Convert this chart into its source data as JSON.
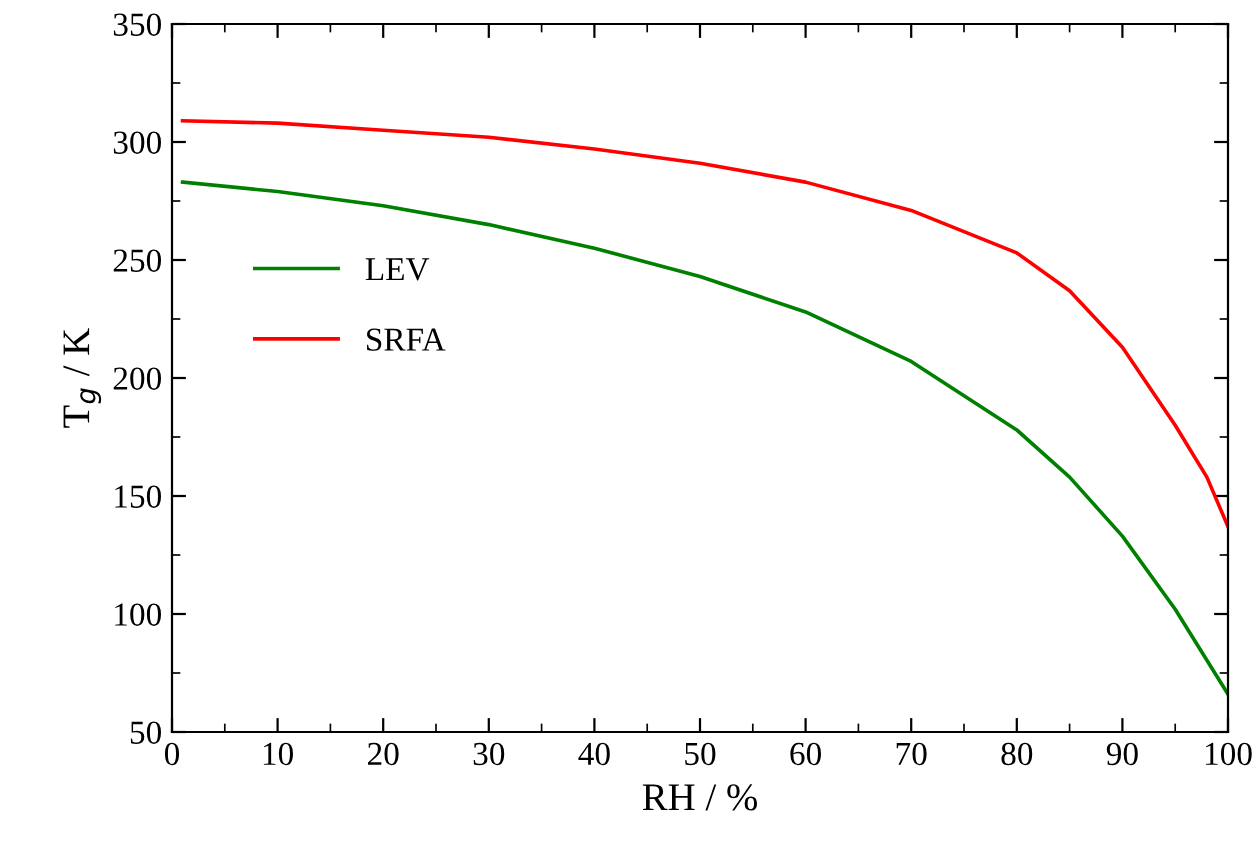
{
  "chart_data": {
    "type": "line",
    "xlabel": "RH / %",
    "ylabel": "T$_{g}$ / K",
    "xlim": [
      0,
      100
    ],
    "ylim": [
      50,
      350
    ],
    "xticks": [
      0,
      10,
      20,
      30,
      40,
      50,
      60,
      70,
      80,
      90,
      100
    ],
    "yticks": [
      50,
      100,
      150,
      200,
      250,
      300,
      350
    ],
    "grid": false,
    "legend": "left",
    "marker": "none",
    "line_style": "solid",
    "series": [
      {
        "name": "LEV",
        "color": "#008000",
        "x": [
          1,
          10,
          20,
          30,
          40,
          50,
          60,
          70,
          80,
          85,
          90,
          95,
          100
        ],
        "values": [
          283,
          279,
          273,
          265,
          255,
          243,
          228,
          207,
          178,
          158,
          133,
          102,
          66
        ]
      },
      {
        "name": "SRFA",
        "color": "#ff0000",
        "x": [
          1,
          10,
          20,
          30,
          40,
          50,
          60,
          70,
          80,
          85,
          90,
          95,
          98,
          100
        ],
        "values": [
          309,
          308,
          305,
          302,
          297,
          291,
          283,
          271,
          253,
          237,
          213,
          180,
          158,
          137
        ]
      }
    ]
  }
}
